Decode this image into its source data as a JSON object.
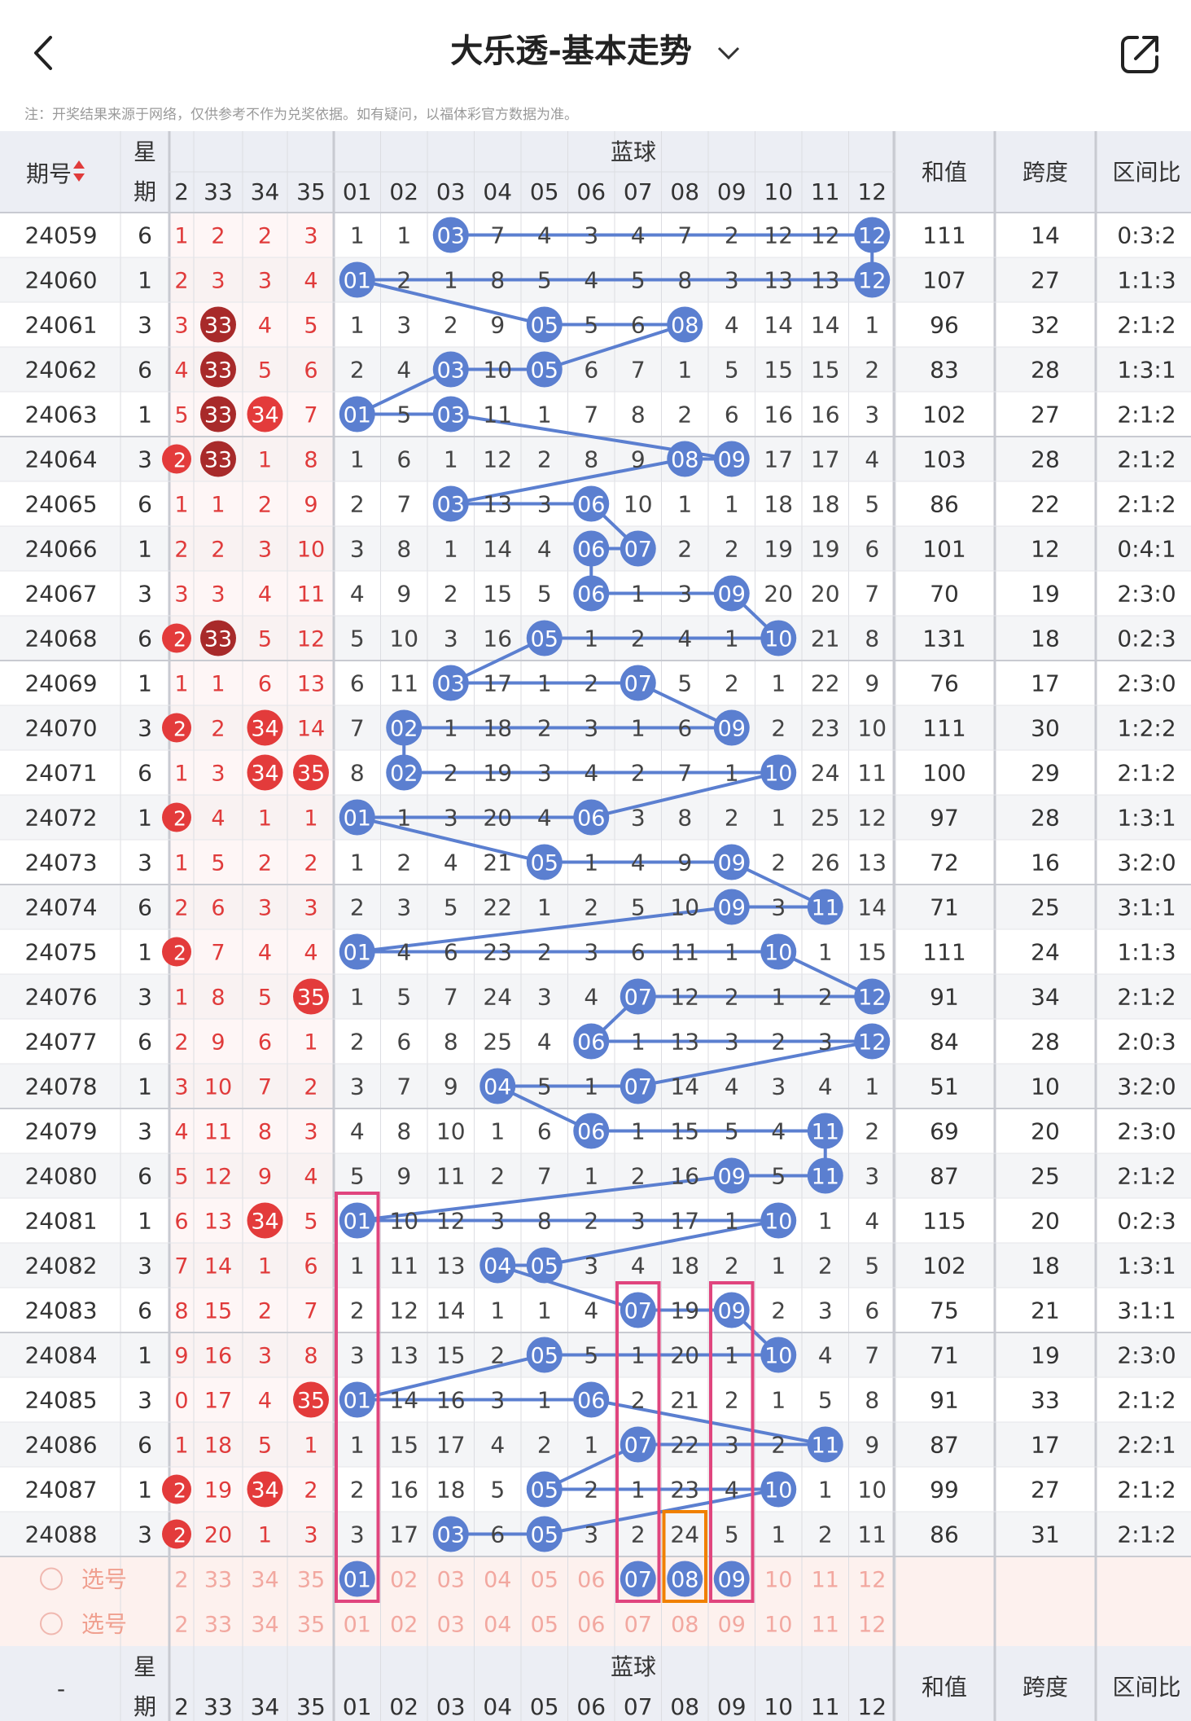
{
  "header": {
    "title": "大乐透-基本走势",
    "notice": "注：开奖结果来源于网络，仅供参考不作为兑奖依据。如有疑问，以福体彩官方数据为准。"
  },
  "table": {
    "col_issue": "期号",
    "col_week": "星期",
    "group_blue": "蓝球",
    "col_sum": "和值",
    "col_span": "跨度",
    "col_zone": "区间比",
    "front_visible_cols": [
      "2",
      "33",
      "34",
      "35"
    ],
    "blue_cols": [
      "01",
      "02",
      "03",
      "04",
      "05",
      "06",
      "07",
      "08",
      "09",
      "10",
      "11",
      "12"
    ],
    "rows": [
      {
        "issue": "24059",
        "week": "6",
        "front": [
          "1",
          "2",
          "2",
          "3"
        ],
        "blue": [
          "1",
          "1",
          "03",
          "7",
          "4",
          "3",
          "4",
          "7",
          "2",
          "12",
          "12",
          "12"
        ],
        "blue_hits": [
          3,
          12
        ],
        "sum": "111",
        "span": "14",
        "zone": "0:3:2"
      },
      {
        "issue": "24060",
        "week": "1",
        "front": [
          "2",
          "3",
          "3",
          "4"
        ],
        "blue": [
          "01",
          "2",
          "1",
          "8",
          "5",
          "4",
          "5",
          "8",
          "3",
          "13",
          "13",
          "12"
        ],
        "blue_hits": [
          1,
          12
        ],
        "sum": "107",
        "span": "27",
        "zone": "1:1:3"
      },
      {
        "issue": "24061",
        "week": "3",
        "front": [
          "3",
          "33",
          "4",
          "5"
        ],
        "blue": [
          "1",
          "3",
          "2",
          "9",
          "05",
          "5",
          "6",
          "08",
          "4",
          "14",
          "14",
          "1"
        ],
        "blue_hits": [
          5,
          8
        ],
        "sum": "96",
        "span": "32",
        "zone": "2:1:2"
      },
      {
        "issue": "24062",
        "week": "6",
        "front": [
          "4",
          "33",
          "5",
          "6"
        ],
        "blue": [
          "2",
          "4",
          "03",
          "10",
          "05",
          "6",
          "7",
          "1",
          "5",
          "15",
          "15",
          "2"
        ],
        "blue_hits": [
          3,
          5
        ],
        "sum": "83",
        "span": "28",
        "zone": "1:3:1"
      },
      {
        "issue": "24063",
        "week": "1",
        "front": [
          "5",
          "33",
          "34",
          "7"
        ],
        "blue": [
          "01",
          "5",
          "03",
          "11",
          "1",
          "7",
          "8",
          "2",
          "6",
          "16",
          "16",
          "3"
        ],
        "blue_hits": [
          1,
          3
        ],
        "sum": "102",
        "span": "27",
        "zone": "2:1:2"
      },
      {
        "issue": "24064",
        "week": "3",
        "front": [
          "2",
          "33",
          "1",
          "8"
        ],
        "blue": [
          "1",
          "6",
          "1",
          "12",
          "2",
          "8",
          "9",
          "08",
          "09",
          "17",
          "17",
          "4"
        ],
        "blue_hits": [
          8,
          9
        ],
        "sum": "103",
        "span": "28",
        "zone": "2:1:2"
      },
      {
        "issue": "24065",
        "week": "6",
        "front": [
          "1",
          "1",
          "2",
          "9"
        ],
        "blue": [
          "2",
          "7",
          "03",
          "13",
          "3",
          "06",
          "10",
          "1",
          "1",
          "18",
          "18",
          "5"
        ],
        "blue_hits": [
          3,
          6
        ],
        "sum": "86",
        "span": "22",
        "zone": "2:1:2"
      },
      {
        "issue": "24066",
        "week": "1",
        "front": [
          "2",
          "2",
          "3",
          "10"
        ],
        "blue": [
          "3",
          "8",
          "1",
          "14",
          "4",
          "06",
          "07",
          "2",
          "2",
          "19",
          "19",
          "6"
        ],
        "blue_hits": [
          6,
          7
        ],
        "sum": "101",
        "span": "12",
        "zone": "0:4:1"
      },
      {
        "issue": "24067",
        "week": "3",
        "front": [
          "3",
          "3",
          "4",
          "11"
        ],
        "blue": [
          "4",
          "9",
          "2",
          "15",
          "5",
          "06",
          "1",
          "3",
          "09",
          "20",
          "20",
          "7"
        ],
        "blue_hits": [
          6,
          9
        ],
        "sum": "70",
        "span": "19",
        "zone": "2:3:0"
      },
      {
        "issue": "24068",
        "week": "6",
        "front": [
          "2",
          "33",
          "5",
          "12"
        ],
        "blue": [
          "5",
          "10",
          "3",
          "16",
          "05",
          "1",
          "2",
          "4",
          "1",
          "10",
          "21",
          "8"
        ],
        "blue_hits": [
          5,
          10
        ],
        "sum": "131",
        "span": "18",
        "zone": "0:2:3"
      },
      {
        "issue": "24069",
        "week": "1",
        "front": [
          "1",
          "1",
          "6",
          "13"
        ],
        "blue": [
          "6",
          "11",
          "03",
          "17",
          "1",
          "2",
          "07",
          "5",
          "2",
          "1",
          "22",
          "9"
        ],
        "blue_hits": [
          3,
          7
        ],
        "sum": "76",
        "span": "17",
        "zone": "2:3:0"
      },
      {
        "issue": "24070",
        "week": "3",
        "front": [
          "2",
          "2",
          "34",
          "14"
        ],
        "blue": [
          "7",
          "02",
          "1",
          "18",
          "2",
          "3",
          "1",
          "6",
          "09",
          "2",
          "23",
          "10"
        ],
        "blue_hits": [
          2,
          9
        ],
        "sum": "111",
        "span": "30",
        "zone": "1:2:2"
      },
      {
        "issue": "24071",
        "week": "6",
        "front": [
          "1",
          "3",
          "34",
          "35"
        ],
        "blue": [
          "8",
          "02",
          "2",
          "19",
          "3",
          "4",
          "2",
          "7",
          "1",
          "10",
          "24",
          "11"
        ],
        "blue_hits": [
          2,
          10
        ],
        "sum": "100",
        "span": "29",
        "zone": "2:1:2"
      },
      {
        "issue": "24072",
        "week": "1",
        "front": [
          "2",
          "4",
          "1",
          "1"
        ],
        "blue": [
          "01",
          "1",
          "3",
          "20",
          "4",
          "06",
          "3",
          "8",
          "2",
          "1",
          "25",
          "12"
        ],
        "blue_hits": [
          1,
          6
        ],
        "sum": "97",
        "span": "28",
        "zone": "1:3:1"
      },
      {
        "issue": "24073",
        "week": "3",
        "front": [
          "1",
          "5",
          "2",
          "2"
        ],
        "blue": [
          "1",
          "2",
          "4",
          "21",
          "05",
          "1",
          "4",
          "9",
          "09",
          "2",
          "26",
          "13"
        ],
        "blue_hits": [
          5,
          9
        ],
        "sum": "72",
        "span": "16",
        "zone": "3:2:0"
      },
      {
        "issue": "24074",
        "week": "6",
        "front": [
          "2",
          "6",
          "3",
          "3"
        ],
        "blue": [
          "2",
          "3",
          "5",
          "22",
          "1",
          "2",
          "5",
          "10",
          "09",
          "3",
          "11",
          "14"
        ],
        "blue_hits": [
          9,
          11
        ],
        "sum": "71",
        "span": "25",
        "zone": "3:1:1"
      },
      {
        "issue": "24075",
        "week": "1",
        "front": [
          "2",
          "7",
          "4",
          "4"
        ],
        "blue": [
          "01",
          "4",
          "6",
          "23",
          "2",
          "3",
          "6",
          "11",
          "1",
          "10",
          "1",
          "15"
        ],
        "blue_hits": [
          1,
          10
        ],
        "sum": "111",
        "span": "24",
        "zone": "1:1:3"
      },
      {
        "issue": "24076",
        "week": "3",
        "front": [
          "1",
          "8",
          "5",
          "35"
        ],
        "blue": [
          "1",
          "5",
          "7",
          "24",
          "3",
          "4",
          "07",
          "12",
          "2",
          "1",
          "2",
          "12"
        ],
        "blue_hits": [
          7,
          12
        ],
        "sum": "91",
        "span": "34",
        "zone": "2:1:2"
      },
      {
        "issue": "24077",
        "week": "6",
        "front": [
          "2",
          "9",
          "6",
          "1"
        ],
        "blue": [
          "2",
          "6",
          "8",
          "25",
          "4",
          "06",
          "1",
          "13",
          "3",
          "2",
          "3",
          "12"
        ],
        "blue_hits": [
          6,
          12
        ],
        "sum": "84",
        "span": "28",
        "zone": "2:0:3"
      },
      {
        "issue": "24078",
        "week": "1",
        "front": [
          "3",
          "10",
          "7",
          "2"
        ],
        "blue": [
          "3",
          "7",
          "9",
          "04",
          "5",
          "1",
          "07",
          "14",
          "4",
          "3",
          "4",
          "1"
        ],
        "blue_hits": [
          4,
          7
        ],
        "sum": "51",
        "span": "10",
        "zone": "3:2:0"
      },
      {
        "issue": "24079",
        "week": "3",
        "front": [
          "4",
          "11",
          "8",
          "3"
        ],
        "blue": [
          "4",
          "8",
          "10",
          "1",
          "6",
          "06",
          "1",
          "15",
          "5",
          "4",
          "11",
          "2"
        ],
        "blue_hits": [
          6,
          11
        ],
        "sum": "69",
        "span": "20",
        "zone": "2:3:0"
      },
      {
        "issue": "24080",
        "week": "6",
        "front": [
          "5",
          "12",
          "9",
          "4"
        ],
        "blue": [
          "5",
          "9",
          "11",
          "2",
          "7",
          "1",
          "2",
          "16",
          "09",
          "5",
          "11",
          "3"
        ],
        "blue_hits": [
          9,
          11
        ],
        "sum": "87",
        "span": "25",
        "zone": "2:1:2"
      },
      {
        "issue": "24081",
        "week": "1",
        "front": [
          "6",
          "13",
          "34",
          "5"
        ],
        "blue": [
          "01",
          "10",
          "12",
          "3",
          "8",
          "2",
          "3",
          "17",
          "1",
          "10",
          "1",
          "4"
        ],
        "blue_hits": [
          1,
          10
        ],
        "sum": "115",
        "span": "20",
        "zone": "0:2:3"
      },
      {
        "issue": "24082",
        "week": "3",
        "front": [
          "7",
          "14",
          "1",
          "6"
        ],
        "blue": [
          "1",
          "11",
          "13",
          "04",
          "05",
          "3",
          "4",
          "18",
          "2",
          "1",
          "2",
          "5"
        ],
        "blue_hits": [
          4,
          5
        ],
        "sum": "102",
        "span": "18",
        "zone": "1:3:1"
      },
      {
        "issue": "24083",
        "week": "6",
        "front": [
          "8",
          "15",
          "2",
          "7"
        ],
        "blue": [
          "2",
          "12",
          "14",
          "1",
          "1",
          "4",
          "07",
          "19",
          "09",
          "2",
          "3",
          "6"
        ],
        "blue_hits": [
          7,
          9
        ],
        "sum": "75",
        "span": "21",
        "zone": "3:1:1"
      },
      {
        "issue": "24084",
        "week": "1",
        "front": [
          "9",
          "16",
          "3",
          "8"
        ],
        "blue": [
          "3",
          "13",
          "15",
          "2",
          "05",
          "5",
          "1",
          "20",
          "1",
          "10",
          "4",
          "7"
        ],
        "blue_hits": [
          5,
          10
        ],
        "sum": "71",
        "span": "19",
        "zone": "2:3:0"
      },
      {
        "issue": "24085",
        "week": "3",
        "front": [
          "0",
          "17",
          "4",
          "35"
        ],
        "blue": [
          "01",
          "14",
          "16",
          "3",
          "1",
          "06",
          "2",
          "21",
          "2",
          "1",
          "5",
          "8"
        ],
        "blue_hits": [
          1,
          6
        ],
        "sum": "91",
        "span": "33",
        "zone": "2:1:2"
      },
      {
        "issue": "24086",
        "week": "6",
        "front": [
          "1",
          "18",
          "5",
          "1"
        ],
        "blue": [
          "1",
          "15",
          "17",
          "4",
          "2",
          "1",
          "07",
          "22",
          "3",
          "2",
          "11",
          "9"
        ],
        "blue_hits": [
          7,
          11
        ],
        "sum": "87",
        "span": "17",
        "zone": "2:2:1"
      },
      {
        "issue": "24087",
        "week": "1",
        "front": [
          "2",
          "19",
          "34",
          "2"
        ],
        "blue": [
          "2",
          "16",
          "18",
          "5",
          "05",
          "2",
          "1",
          "23",
          "4",
          "10",
          "1",
          "10"
        ],
        "blue_hits": [
          5,
          10
        ],
        "sum": "99",
        "span": "27",
        "zone": "2:1:2"
      },
      {
        "issue": "24088",
        "week": "3",
        "front": [
          "2",
          "20",
          "1",
          "3"
        ],
        "blue": [
          "3",
          "17",
          "03",
          "6",
          "05",
          "3",
          "2",
          "24",
          "5",
          "1",
          "2",
          "11"
        ],
        "blue_hits": [
          3,
          5
        ],
        "sum": "86",
        "span": "31",
        "zone": "2:1:2"
      }
    ],
    "pick_label": "选号",
    "footer_issue": "-"
  },
  "colors": {
    "blue_ball": "#5b7fd0",
    "blue_line": "#5b7fd0",
    "red_text": "#e03b3b",
    "red_ball": "#e33b3b",
    "dark_red_ball": "#a82a2a",
    "pink_box": "#e0457e",
    "orange_box": "#f08000",
    "header_bg": "#eceef4",
    "pick_bg": "#fdf1ee"
  }
}
